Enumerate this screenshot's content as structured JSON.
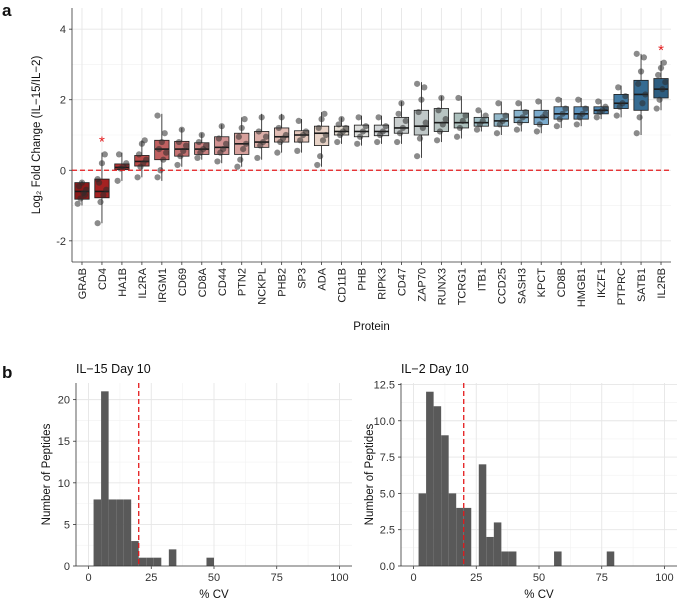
{
  "panel_labels": {
    "a": "a",
    "b": "b"
  },
  "chart_data": [
    {
      "type": "box",
      "panel": "a",
      "xlabel": "Protein",
      "ylabel": "Log₂ Fold Change (IL−15/IL−2)",
      "ylim": [
        -2.6,
        4.6
      ],
      "yticks": [
        -2,
        0,
        2,
        4
      ],
      "reference_line": 0,
      "significance_marker": "*",
      "significant": [
        "CD4",
        "IL2RB"
      ],
      "categories": [
        "GRAB",
        "CD4",
        "HA1B",
        "IL2RA",
        "IRGM1",
        "CD69",
        "CD8A",
        "CD44",
        "PTN2",
        "NCKPL",
        "PHB2",
        "SP3",
        "ADA",
        "CD11B",
        "PHB",
        "RIPK3",
        "CD47",
        "ZAP70",
        "RUNX3",
        "TCRG1",
        "ITB1",
        "CCD25",
        "SASH3",
        "KPCT",
        "CD8B",
        "HMGB1",
        "IKZF1",
        "PTPRC",
        "SATB1",
        "IL2RB"
      ],
      "colors": [
        "#8b1a1a",
        "#a52222",
        "#b33434",
        "#ba4a48",
        "#c06060",
        "#c67272",
        "#cc8282",
        "#d29292",
        "#d7a09c",
        "#dcaea8",
        "#e1bcb4",
        "#e5c7bc",
        "#e7d2c6",
        "#e5ddd3",
        "#dedfdd",
        "#d2d6d8",
        "#c9cece",
        "#c0c8c8",
        "#b7c4c2",
        "#acc0bd",
        "#a2c1c8",
        "#95bacb",
        "#88b3cc",
        "#7aaacc",
        "#6c9fc6",
        "#5e93bd",
        "#5086b0",
        "#427aa3",
        "#356b92",
        "#2d5d80"
      ],
      "boxes": [
        {
          "q1": -0.82,
          "median": -0.6,
          "q3": -0.35,
          "lo": -1.0,
          "hi": -0.3,
          "points": [
            -0.95,
            -0.8,
            -0.65,
            -0.55,
            -0.45,
            -0.35,
            -0.7
          ]
        },
        {
          "q1": -0.78,
          "median": -0.6,
          "q3": -0.25,
          "lo": -1.5,
          "hi": 0.5,
          "points": [
            -1.5,
            -0.9,
            -0.7,
            -0.55,
            -0.35,
            0.2,
            0.45,
            -0.25
          ]
        },
        {
          "q1": 0.02,
          "median": 0.08,
          "q3": 0.18,
          "lo": -0.3,
          "hi": 0.5,
          "points": [
            -0.3,
            0.05,
            0.1,
            0.2,
            0.45
          ]
        },
        {
          "q1": 0.12,
          "median": 0.25,
          "q3": 0.42,
          "lo": -0.2,
          "hi": 0.85,
          "points": [
            -0.2,
            0.1,
            0.2,
            0.3,
            0.45,
            0.75,
            0.85
          ]
        },
        {
          "q1": 0.3,
          "median": 0.6,
          "q3": 0.85,
          "lo": -0.3,
          "hi": 1.6,
          "points": [
            -0.2,
            0.0,
            0.3,
            0.5,
            0.6,
            0.8,
            1.05,
            1.55
          ]
        },
        {
          "q1": 0.4,
          "median": 0.6,
          "q3": 0.82,
          "lo": 0.1,
          "hi": 1.2,
          "points": [
            0.15,
            0.4,
            0.55,
            0.7,
            0.8,
            1.15
          ]
        },
        {
          "q1": 0.45,
          "median": 0.6,
          "q3": 0.78,
          "lo": 0.3,
          "hi": 1.05,
          "points": [
            0.35,
            0.5,
            0.6,
            0.7,
            0.8,
            1.0
          ]
        },
        {
          "q1": 0.45,
          "median": 0.65,
          "q3": 0.95,
          "lo": 0.2,
          "hi": 1.3,
          "points": [
            0.25,
            0.5,
            0.6,
            0.75,
            0.9,
            1.25
          ]
        },
        {
          "q1": 0.45,
          "median": 0.75,
          "q3": 1.05,
          "lo": 0.1,
          "hi": 1.5,
          "points": [
            0.1,
            0.3,
            0.6,
            0.75,
            0.95,
            1.2,
            1.45
          ]
        },
        {
          "q1": 0.65,
          "median": 0.8,
          "q3": 1.1,
          "lo": 0.3,
          "hi": 1.6,
          "points": [
            0.35,
            0.7,
            0.8,
            0.95,
            1.1,
            1.5
          ]
        },
        {
          "q1": 0.8,
          "median": 0.95,
          "q3": 1.2,
          "lo": 0.5,
          "hi": 1.6,
          "points": [
            0.5,
            0.8,
            0.9,
            1.0,
            1.2,
            1.5
          ]
        },
        {
          "q1": 0.8,
          "median": 1.0,
          "q3": 1.12,
          "lo": 0.5,
          "hi": 1.45,
          "points": [
            0.55,
            0.85,
            1.0,
            1.1,
            1.4
          ]
        },
        {
          "q1": 0.7,
          "median": 1.05,
          "q3": 1.25,
          "lo": 0.1,
          "hi": 1.65,
          "points": [
            0.15,
            0.4,
            0.85,
            1.0,
            1.2,
            1.45,
            1.6
          ]
        },
        {
          "q1": 1.0,
          "median": 1.1,
          "q3": 1.25,
          "lo": 0.75,
          "hi": 1.5,
          "points": [
            0.8,
            1.0,
            1.1,
            1.2,
            1.3,
            1.45
          ]
        },
        {
          "q1": 0.95,
          "median": 1.1,
          "q3": 1.28,
          "lo": 0.7,
          "hi": 1.55,
          "points": [
            0.75,
            0.95,
            1.1,
            1.25,
            1.5
          ]
        },
        {
          "q1": 0.98,
          "median": 1.1,
          "q3": 1.28,
          "lo": 0.75,
          "hi": 1.55,
          "points": [
            0.8,
            1.0,
            1.1,
            1.25,
            1.5
          ]
        },
        {
          "q1": 1.05,
          "median": 1.2,
          "q3": 1.5,
          "lo": 0.75,
          "hi": 1.95,
          "points": [
            0.8,
            1.05,
            1.2,
            1.4,
            1.6,
            1.9
          ]
        },
        {
          "q1": 1.0,
          "median": 1.25,
          "q3": 1.7,
          "lo": 0.35,
          "hi": 2.5,
          "points": [
            0.4,
            0.9,
            1.2,
            1.35,
            1.65,
            2.0,
            2.35,
            2.45
          ]
        },
        {
          "q1": 1.1,
          "median": 1.35,
          "q3": 1.75,
          "lo": 0.8,
          "hi": 2.1,
          "points": [
            0.85,
            1.1,
            1.3,
            1.45,
            1.7,
            2.05
          ]
        },
        {
          "q1": 1.2,
          "median": 1.35,
          "q3": 1.62,
          "lo": 0.9,
          "hi": 2.1,
          "points": [
            0.95,
            1.2,
            1.4,
            1.55,
            2.05
          ]
        },
        {
          "q1": 1.25,
          "median": 1.35,
          "q3": 1.5,
          "lo": 1.1,
          "hi": 1.7,
          "points": [
            1.15,
            1.3,
            1.4,
            1.55,
            1.7
          ]
        },
        {
          "q1": 1.25,
          "median": 1.4,
          "q3": 1.6,
          "lo": 1.0,
          "hi": 1.95,
          "points": [
            1.05,
            1.3,
            1.4,
            1.55,
            1.9
          ]
        },
        {
          "q1": 1.35,
          "median": 1.5,
          "q3": 1.7,
          "lo": 1.1,
          "hi": 1.95,
          "points": [
            1.15,
            1.35,
            1.5,
            1.65,
            1.9
          ]
        },
        {
          "q1": 1.3,
          "median": 1.5,
          "q3": 1.7,
          "lo": 1.05,
          "hi": 2.0,
          "points": [
            1.1,
            1.3,
            1.5,
            1.6,
            1.95
          ]
        },
        {
          "q1": 1.45,
          "median": 1.6,
          "q3": 1.8,
          "lo": 1.2,
          "hi": 2.05,
          "points": [
            1.25,
            1.45,
            1.6,
            1.75,
            2.0
          ]
        },
        {
          "q1": 1.45,
          "median": 1.6,
          "q3": 1.8,
          "lo": 1.25,
          "hi": 2.05,
          "points": [
            1.3,
            1.5,
            1.6,
            1.75,
            2.0
          ]
        },
        {
          "q1": 1.6,
          "median": 1.7,
          "q3": 1.8,
          "lo": 1.45,
          "hi": 2.0,
          "points": [
            1.5,
            1.65,
            1.7,
            1.8,
            1.95
          ]
        },
        {
          "q1": 1.75,
          "median": 1.9,
          "q3": 2.15,
          "lo": 1.5,
          "hi": 2.4,
          "points": [
            1.55,
            1.8,
            1.9,
            2.1,
            2.35
          ]
        },
        {
          "q1": 1.7,
          "median": 2.15,
          "q3": 2.55,
          "lo": 1.0,
          "hi": 3.3,
          "points": [
            1.05,
            1.5,
            1.9,
            2.15,
            2.45,
            2.8,
            3.2,
            3.3
          ]
        },
        {
          "q1": 2.05,
          "median": 2.3,
          "q3": 2.6,
          "lo": 1.7,
          "hi": 3.1,
          "points": [
            1.75,
            2.0,
            2.3,
            2.5,
            2.7,
            2.9,
            3.05
          ]
        }
      ]
    },
    {
      "type": "histogram",
      "panel": "b",
      "title": "IL−15 Day 10",
      "xlabel": "% CV",
      "ylabel": "Number of Peptides",
      "xlim": [
        -5,
        105
      ],
      "ylim": [
        0,
        22
      ],
      "xticks": [
        0,
        25,
        50,
        75,
        100
      ],
      "yticks": [
        0,
        5,
        10,
        15,
        20
      ],
      "reference_line": 20,
      "bins": [
        {
          "x0": 2,
          "x1": 5,
          "count": 8
        },
        {
          "x0": 5,
          "x1": 8,
          "count": 21
        },
        {
          "x0": 8,
          "x1": 11,
          "count": 8
        },
        {
          "x0": 11,
          "x1": 14,
          "count": 8
        },
        {
          "x0": 14,
          "x1": 17,
          "count": 8
        },
        {
          "x0": 17,
          "x1": 20,
          "count": 3
        },
        {
          "x0": 20,
          "x1": 23,
          "count": 1
        },
        {
          "x0": 23,
          "x1": 26,
          "count": 1
        },
        {
          "x0": 26,
          "x1": 29,
          "count": 1
        },
        {
          "x0": 32,
          "x1": 35,
          "count": 2
        },
        {
          "x0": 47,
          "x1": 50,
          "count": 1
        }
      ]
    },
    {
      "type": "histogram",
      "panel": "b",
      "title": "IL−2 Day 10",
      "xlabel": "% CV",
      "ylabel": "Number of Peptides",
      "xlim": [
        -5,
        105
      ],
      "ylim": [
        0,
        12.6
      ],
      "xticks": [
        0,
        25,
        50,
        75,
        100
      ],
      "yticks": [
        0.0,
        2.5,
        5.0,
        7.5,
        10.0,
        12.5
      ],
      "reference_line": 20,
      "bins": [
        {
          "x0": 2,
          "x1": 5,
          "count": 5
        },
        {
          "x0": 5,
          "x1": 8,
          "count": 12
        },
        {
          "x0": 8,
          "x1": 11,
          "count": 11
        },
        {
          "x0": 11,
          "x1": 14,
          "count": 9
        },
        {
          "x0": 14,
          "x1": 17,
          "count": 5
        },
        {
          "x0": 17,
          "x1": 20,
          "count": 4
        },
        {
          "x0": 20,
          "x1": 23,
          "count": 4
        },
        {
          "x0": 26,
          "x1": 29,
          "count": 7
        },
        {
          "x0": 29,
          "x1": 32,
          "count": 2
        },
        {
          "x0": 32,
          "x1": 35,
          "count": 3
        },
        {
          "x0": 35,
          "x1": 38,
          "count": 1
        },
        {
          "x0": 38,
          "x1": 41,
          "count": 1
        },
        {
          "x0": 56,
          "x1": 59,
          "count": 1
        },
        {
          "x0": 77,
          "x1": 80,
          "count": 1
        }
      ]
    }
  ]
}
